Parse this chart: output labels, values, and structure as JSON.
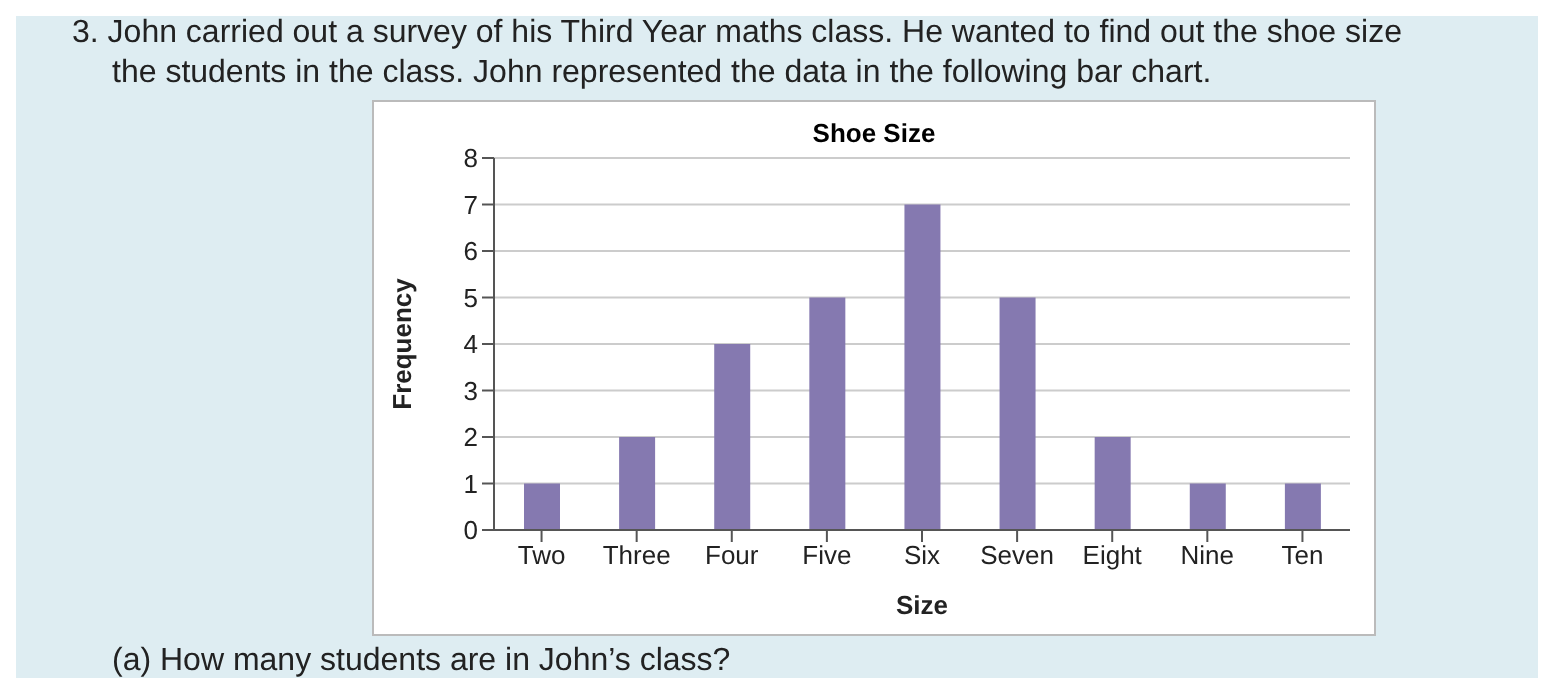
{
  "chart_data": {
    "type": "bar",
    "title": "Shoe Size",
    "xlabel": "Size",
    "ylabel": "Frequency",
    "annotations": [
      "3. John carried out a survey of his Third Year maths class. He wanted to find out the shoe size",
      "the students in the class. John represented the data in the following bar chart.",
      "(a) How many students are in John’s class?"
    ],
    "categories": [
      "Two",
      "Three",
      "Four",
      "Five",
      "Six",
      "Seven",
      "Eight",
      "Nine",
      "Ten"
    ],
    "values": [
      1,
      2,
      4,
      5,
      7,
      5,
      2,
      1,
      1
    ],
    "color": "#8579b0",
    "ylim": [
      0,
      8
    ],
    "yticks": [
      0,
      1,
      2,
      3,
      4,
      5,
      6,
      7,
      8
    ],
    "grid": "y",
    "legend": false
  }
}
